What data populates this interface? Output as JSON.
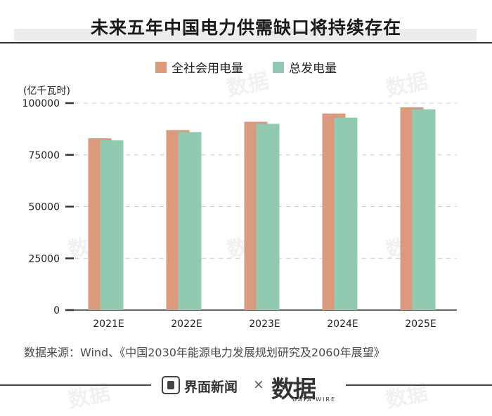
{
  "title": "未来五年中国电力供需缺口将持续存在",
  "unit_label": "(亿千瓦时)",
  "source": "数据来源：Wind、《中国2030年能源电力发展规划研究及2060年展望》",
  "footer": {
    "left_brand": "界面新闻",
    "separator": "×",
    "right_brand": "数据",
    "right_brand_sub": "DATA WIRE"
  },
  "watermark": "数据",
  "colors": {
    "society": "#d99a7e",
    "generation": "#92c9b1",
    "grid": "#cccccc",
    "axis": "#333333"
  },
  "chart_data": {
    "type": "bar",
    "title": "未来五年中国电力供需缺口将持续存在",
    "ylabel": "(亿千瓦时)",
    "xlabel": "",
    "categories": [
      "2021E",
      "2022E",
      "2023E",
      "2024E",
      "2025E"
    ],
    "series": [
      {
        "name": "全社会用电量",
        "values": [
          83000,
          87000,
          91000,
          95000,
          98000
        ]
      },
      {
        "name": "总发电量",
        "values": [
          82000,
          86000,
          90000,
          93000,
          97000
        ]
      }
    ],
    "ylim": [
      0,
      100000
    ],
    "yticks": [
      0,
      25000,
      50000,
      75000,
      100000
    ],
    "legend": "top-center",
    "grid": true
  }
}
